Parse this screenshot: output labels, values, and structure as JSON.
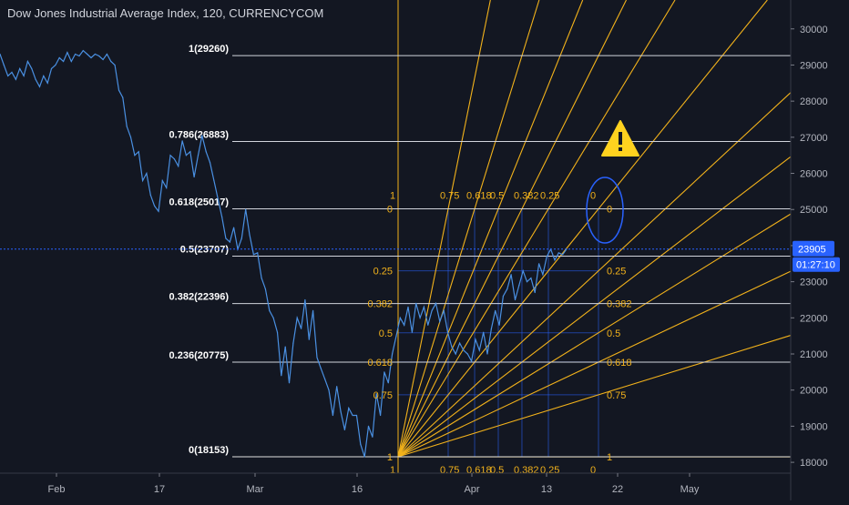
{
  "chart_data": {
    "type": "line",
    "title": "Dow Jones Industrial Average Index, 120, CURRENCYCOM",
    "ylim": [
      17700,
      30800
    ],
    "y_ticks": [
      "30000",
      "29000",
      "28000",
      "27000",
      "26000",
      "25000",
      "24000",
      "23000",
      "22000",
      "21000",
      "20000",
      "19000",
      "18000"
    ],
    "x_ticks": [
      "Feb",
      "17",
      "Mar",
      "16",
      "Apr",
      "13",
      "22",
      "May"
    ],
    "current_price": "23905",
    "countdown": "01:27:10",
    "fib_retracement": [
      {
        "label": "1(29260)",
        "value": 29260
      },
      {
        "label": "0.786(26883)",
        "value": 26883
      },
      {
        "label": "0.618(25017)",
        "value": 25017
      },
      {
        "label": "0.5(23707)",
        "value": 23707
      },
      {
        "label": "0.382(22396)",
        "value": 22396
      },
      {
        "label": "0.236(20775)",
        "value": 20775
      },
      {
        "label": "0(18153)",
        "value": 18153
      }
    ],
    "gann_fan": {
      "top_labels": [
        "1",
        "0.75",
        "0.618",
        "0.5",
        "0.382",
        "0.25",
        "0"
      ],
      "bottom_labels": [
        "1",
        "0.75",
        "0.618",
        "0.5",
        "0.382",
        "0.25",
        "0"
      ],
      "left_labels": [
        "0",
        "0.25",
        "0.382",
        "0.5",
        "0.618",
        "0.75",
        "1"
      ],
      "right_labels": [
        "0",
        "0.25",
        "0.382",
        "0.5",
        "0.618",
        "0.75",
        "1"
      ],
      "box_top": 25017,
      "box_bottom": 18153
    },
    "series": [
      {
        "values": [
          29300,
          29000,
          28700,
          28800,
          28600,
          28900,
          28700,
          29100,
          28900,
          28600,
          28400,
          28700,
          28500,
          28900,
          29000,
          29200,
          29100,
          29350,
          29100,
          29300,
          29250,
          29400,
          29300,
          29200,
          29300,
          29250,
          29150,
          29300,
          29100,
          29000,
          28300,
          28100,
          27300,
          27000,
          26500,
          26600,
          25800,
          26000,
          25400,
          25100,
          24950,
          25800,
          25600,
          26500,
          26400,
          26200,
          26900,
          26500,
          26600,
          25900,
          26500,
          27050,
          26600,
          26300,
          25800,
          25300,
          24800,
          24200,
          24100,
          24500,
          23900,
          24200,
          25000,
          24300,
          23750,
          23800,
          23100,
          22800,
          22200,
          22000,
          21600,
          20400,
          21200,
          20200,
          21300,
          22000,
          21700,
          22500,
          21400,
          22200,
          20900,
          20600,
          20300,
          20000,
          19300,
          20100,
          19400,
          18900,
          19500,
          19300,
          19300,
          18500,
          18153,
          19000,
          18700,
          19900,
          19300,
          20500,
          20200,
          21000,
          21500,
          22000,
          21800,
          22300,
          21600,
          22400,
          22000,
          22300,
          21800,
          22200,
          22400,
          21900,
          22200,
          21600,
          21200,
          21000,
          21300,
          21100,
          21000,
          20800,
          21400,
          21100,
          21600,
          21000,
          21700,
          22200,
          21800,
          22600,
          22800,
          23200,
          22500,
          22900,
          23300,
          23000,
          23100,
          22700,
          23500,
          23200,
          23700,
          23900,
          23600,
          23800,
          23750,
          23905
        ]
      }
    ]
  }
}
